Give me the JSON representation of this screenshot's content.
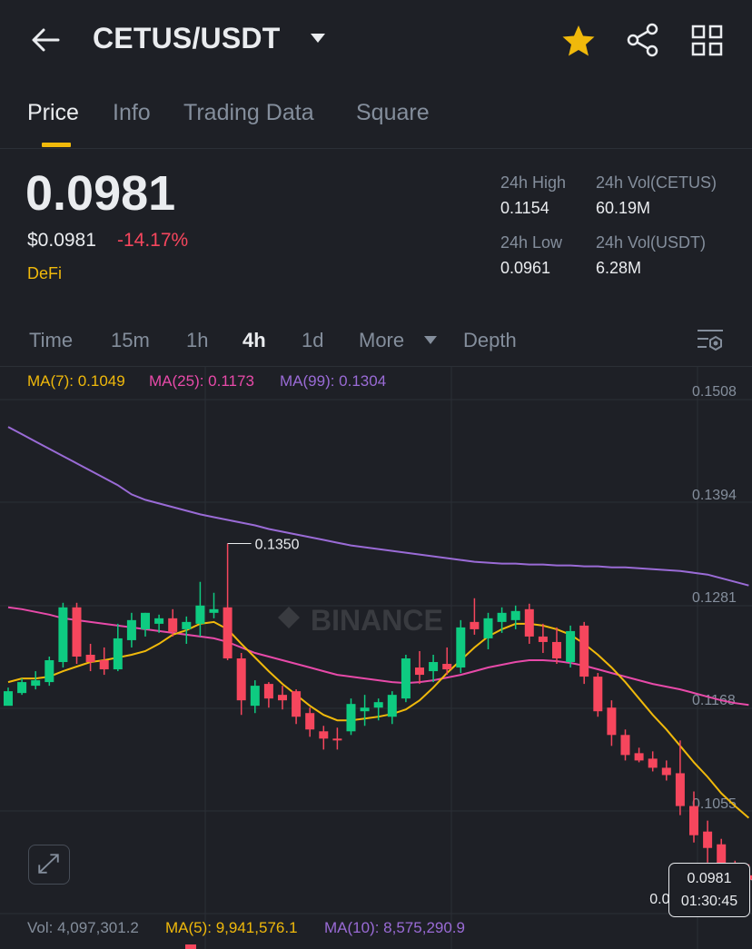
{
  "header": {
    "pair": "CETUS/USDT",
    "icons": [
      "back-arrow-icon",
      "chevron-down-icon",
      "star-icon",
      "share-icon",
      "grid-icon"
    ],
    "star_color": "#f0b90b"
  },
  "tabs": [
    {
      "label": "Price",
      "active": true
    },
    {
      "label": "Info",
      "active": false
    },
    {
      "label": "Trading Data",
      "active": false
    },
    {
      "label": "Square",
      "active": false
    }
  ],
  "ticker": {
    "last_price": "0.0981",
    "usd_price": "$0.0981",
    "change": "-14.17%",
    "tag": "DeFi",
    "stats": {
      "high_label": "24h High",
      "high_value": "0.1154",
      "vol_base_label": "24h Vol(CETUS)",
      "vol_base_value": "60.19M",
      "low_label": "24h Low",
      "low_value": "0.0961",
      "vol_quote_label": "24h Vol(USDT)",
      "vol_quote_value": "6.28M"
    }
  },
  "intervals": {
    "items": [
      "Time",
      "15m",
      "1h",
      "4h",
      "1d",
      "More",
      "Depth"
    ],
    "active": "4h"
  },
  "ma_legend": {
    "ma7": "MA(7): 0.1049",
    "ma25": "MA(25): 0.1173",
    "ma99": "MA(99): 0.1304"
  },
  "colors": {
    "up": "#0ecb81",
    "down": "#f6465d",
    "ma7": "#f0b90b",
    "ma25": "#e84aa9",
    "ma99": "#9a6bd6"
  },
  "chart_data": {
    "type": "candlestick",
    "interval": "4h",
    "y_ticks": [
      "0.1508",
      "0.1394",
      "0.1281",
      "0.1168",
      "0.1055"
    ],
    "ylim": [
      0.095,
      0.1535
    ],
    "annotations": {
      "high": "0.1350",
      "low": "0.0961"
    },
    "current_price": "0.0981",
    "countdown": "01:30:45",
    "watermark": "BINANCE",
    "candles": [
      [
        0.1172,
        0.1192,
        0.1176,
        0.1188
      ],
      [
        0.1186,
        0.1202,
        0.1184,
        0.1198
      ],
      [
        0.1194,
        0.121,
        0.119,
        0.12
      ],
      [
        0.1198,
        0.1226,
        0.1194,
        0.1222
      ],
      [
        0.122,
        0.1285,
        0.1214,
        0.128
      ],
      [
        0.128,
        0.1285,
        0.1218,
        0.1226
      ],
      [
        0.1228,
        0.124,
        0.121,
        0.122
      ],
      [
        0.1222,
        0.1236,
        0.1206,
        0.1212
      ],
      [
        0.1212,
        0.1262,
        0.121,
        0.1246
      ],
      [
        0.1244,
        0.1274,
        0.1236,
        0.1266
      ],
      [
        0.1256,
        0.1274,
        0.1248,
        0.1274
      ],
      [
        0.1262,
        0.1272,
        0.1252,
        0.1268
      ],
      [
        0.1268,
        0.1278,
        0.1248,
        0.1253
      ],
      [
        0.1256,
        0.127,
        0.124,
        0.1264
      ],
      [
        0.1262,
        0.1308,
        0.1248,
        0.1282
      ],
      [
        0.1274,
        0.1296,
        0.1268,
        0.1278
      ],
      [
        0.128,
        0.135,
        0.1222,
        0.1224
      ],
      [
        0.1224,
        0.123,
        0.1162,
        0.1178
      ],
      [
        0.1172,
        0.12,
        0.1164,
        0.1194
      ],
      [
        0.1196,
        0.1198,
        0.117,
        0.118
      ],
      [
        0.1184,
        0.1194,
        0.1168,
        0.1178
      ],
      [
        0.1188,
        0.119,
        0.1152,
        0.116
      ],
      [
        0.1164,
        0.117,
        0.1138,
        0.1146
      ],
      [
        0.1144,
        0.115,
        0.1124,
        0.1136
      ],
      [
        0.1136,
        0.1148,
        0.1124,
        0.1134
      ],
      [
        0.1144,
        0.118,
        0.114,
        0.1174
      ],
      [
        0.1166,
        0.1184,
        0.115,
        0.117
      ],
      [
        0.117,
        0.118,
        0.1156,
        0.1176
      ],
      [
        0.116,
        0.1188,
        0.1152,
        0.1184
      ],
      [
        0.118,
        0.1228,
        0.1176,
        0.1224
      ],
      [
        0.1214,
        0.1232,
        0.1196,
        0.1206
      ],
      [
        0.121,
        0.1228,
        0.1198,
        0.122
      ],
      [
        0.1218,
        0.1236,
        0.1206,
        0.1212
      ],
      [
        0.1214,
        0.1266,
        0.1208,
        0.1258
      ],
      [
        0.1264,
        0.129,
        0.125,
        0.1256
      ],
      [
        0.1246,
        0.1274,
        0.1234,
        0.1268
      ],
      [
        0.1264,
        0.128,
        0.1252,
        0.1274
      ],
      [
        0.1266,
        0.1282,
        0.1256,
        0.1276
      ],
      [
        0.1278,
        0.1284,
        0.124,
        0.1248
      ],
      [
        0.1248,
        0.1262,
        0.123,
        0.1242
      ],
      [
        0.1242,
        0.1258,
        0.1218,
        0.1224
      ],
      [
        0.122,
        0.126,
        0.1214,
        0.1254
      ],
      [
        0.126,
        0.1264,
        0.1196,
        0.1204
      ],
      [
        0.1204,
        0.1208,
        0.116,
        0.1166
      ],
      [
        0.117,
        0.1178,
        0.1128,
        0.114
      ],
      [
        0.114,
        0.1146,
        0.1112,
        0.1118
      ],
      [
        0.112,
        0.1126,
        0.111,
        0.1112
      ],
      [
        0.1114,
        0.1122,
        0.11,
        0.1104
      ],
      [
        0.1104,
        0.1112,
        0.109,
        0.1096
      ],
      [
        0.1098,
        0.1134,
        0.1052,
        0.1062
      ],
      [
        0.1062,
        0.1078,
        0.1022,
        0.103
      ],
      [
        0.1034,
        0.1046,
        0.1,
        0.1016
      ],
      [
        0.102,
        0.1026,
        0.0961,
        0.0978
      ],
      [
        0.0994,
        0.1002,
        0.0962,
        0.0984
      ],
      [
        0.0986,
        0.0998,
        0.0976,
        0.0981
      ]
    ],
    "ma7": [
      0.1198,
      0.1202,
      0.1202,
      0.1204,
      0.121,
      0.1215,
      0.122,
      0.1222,
      0.1225,
      0.1228,
      0.1232,
      0.124,
      0.125,
      0.1255,
      0.1262,
      0.1264,
      0.1256,
      0.124,
      0.1225,
      0.121,
      0.1196,
      0.1184,
      0.1172,
      0.1162,
      0.1156,
      0.1156,
      0.1158,
      0.116,
      0.1163,
      0.1168,
      0.1178,
      0.1192,
      0.1208,
      0.1222,
      0.1236,
      0.1248,
      0.1256,
      0.1262,
      0.1262,
      0.126,
      0.1256,
      0.125,
      0.124,
      0.1228,
      0.1214,
      0.1198,
      0.118,
      0.1162,
      0.1146,
      0.1128,
      0.111,
      0.1094,
      0.1076,
      0.1062,
      0.1049
    ],
    "ma25": [
      0.128,
      0.1278,
      0.1275,
      0.1272,
      0.1268,
      0.1266,
      0.1264,
      0.1262,
      0.126,
      0.1258,
      0.1256,
      0.1254,
      0.1252,
      0.125,
      0.1248,
      0.1246,
      0.1242,
      0.1236,
      0.123,
      0.1226,
      0.1222,
      0.1218,
      0.1214,
      0.121,
      0.1206,
      0.1204,
      0.1202,
      0.12,
      0.1198,
      0.1197,
      0.1198,
      0.12,
      0.1203,
      0.1206,
      0.121,
      0.1214,
      0.1217,
      0.122,
      0.1222,
      0.1222,
      0.1221,
      0.1219,
      0.1216,
      0.1212,
      0.1208,
      0.1204,
      0.12,
      0.1196,
      0.1193,
      0.119,
      0.1186,
      0.1182,
      0.1178,
      0.1175,
      0.1173
    ],
    "ma99": [
      0.1478,
      0.147,
      0.1462,
      0.1454,
      0.1446,
      0.1438,
      0.143,
      0.1422,
      0.1414,
      0.1404,
      0.1398,
      0.1394,
      0.139,
      0.1386,
      0.1382,
      0.1379,
      0.1376,
      0.1373,
      0.137,
      0.1366,
      0.1363,
      0.136,
      0.1357,
      0.1354,
      0.1351,
      0.1348,
      0.1346,
      0.1344,
      0.1342,
      0.134,
      0.1338,
      0.1336,
      0.1334,
      0.1332,
      0.133,
      0.1329,
      0.1328,
      0.1328,
      0.1327,
      0.1327,
      0.1326,
      0.1326,
      0.1325,
      0.1325,
      0.1324,
      0.1324,
      0.1323,
      0.1322,
      0.1321,
      0.132,
      0.1318,
      0.1316,
      0.1312,
      0.1308,
      0.1304
    ]
  },
  "volume_legend": {
    "vol": "Vol: 4,097,301.2",
    "ma5": "MA(5): 9,941,576.1",
    "ma10": "MA(10): 8,575,290.9"
  }
}
